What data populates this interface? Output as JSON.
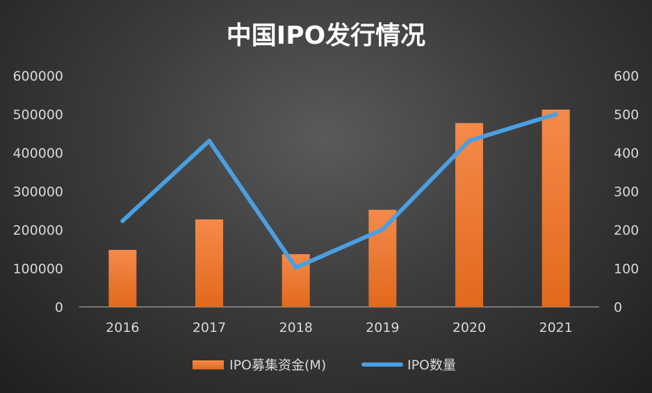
{
  "chart_data": {
    "type": "bar",
    "title": "中国IPO发行情况",
    "categories": [
      "2016",
      "2017",
      "2018",
      "2019",
      "2020",
      "2021"
    ],
    "series": [
      {
        "name": "IPO募集资金(M)",
        "type": "bar",
        "axis": "left",
        "values": [
          148000,
          227000,
          137000,
          252000,
          477000,
          512000
        ]
      },
      {
        "name": "IPO数量",
        "type": "line",
        "axis": "right",
        "values": [
          223,
          431,
          102,
          201,
          431,
          500
        ]
      }
    ],
    "y_left": {
      "min": 0,
      "max": 600000,
      "ticks": [
        "0",
        "100000",
        "200000",
        "300000",
        "400000",
        "500000",
        "600000"
      ]
    },
    "y_right": {
      "min": 0,
      "max": 600,
      "ticks": [
        "0",
        "100",
        "200",
        "300",
        "400",
        "500",
        "600"
      ]
    },
    "grid": false,
    "legend_position": "bottom",
    "colors": {
      "bar": "#ed7d31",
      "line": "#4a9fe0"
    }
  }
}
